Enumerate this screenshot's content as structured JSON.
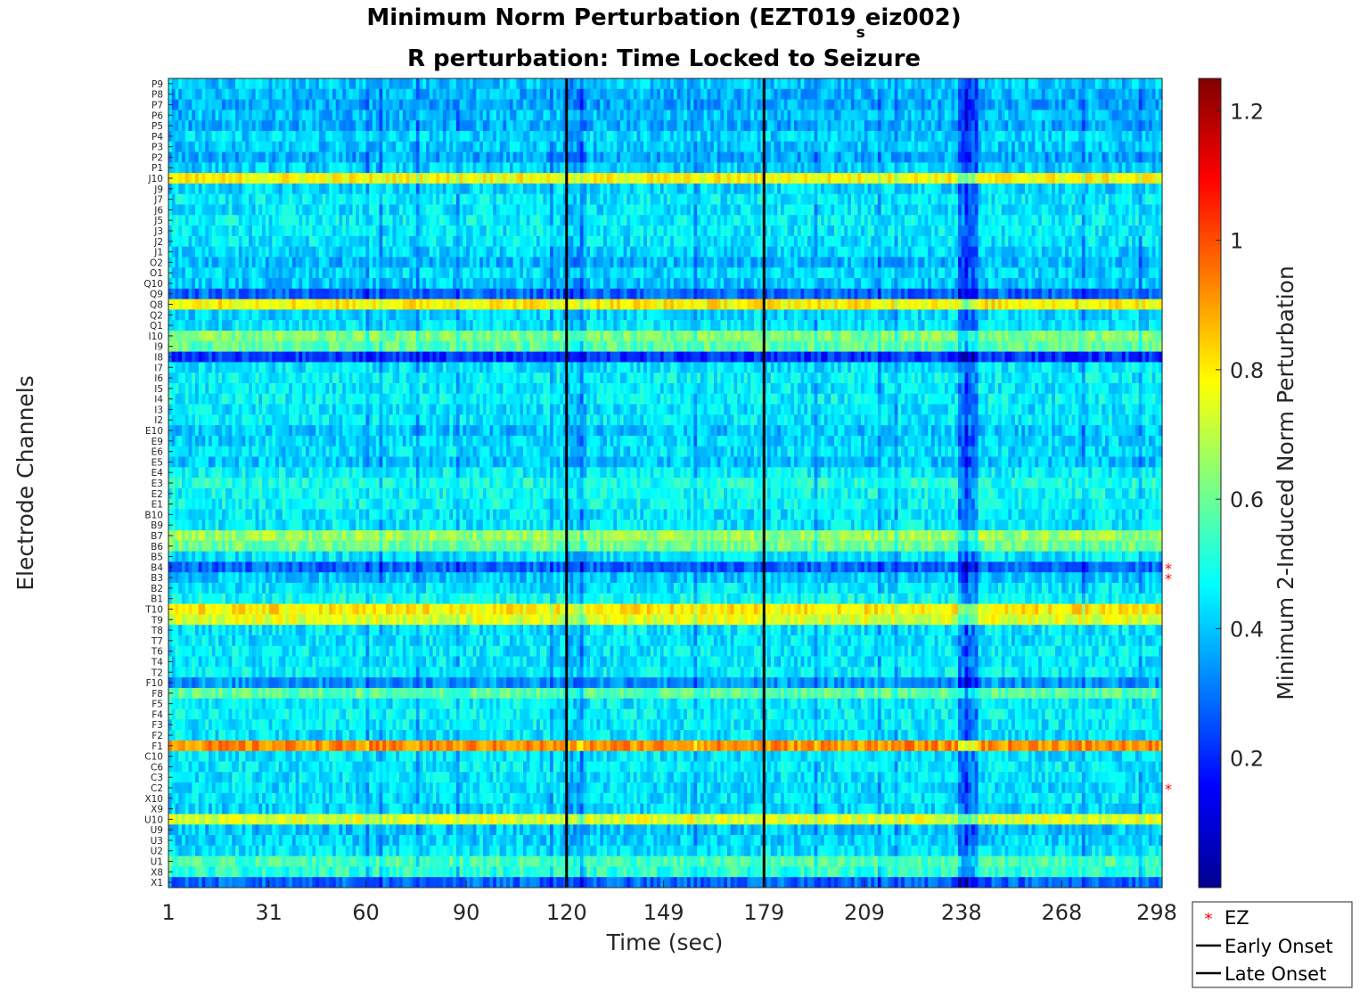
{
  "colors": {
    "ez_marker": "#ff0000",
    "onset_line": "#000000",
    "colormap": "jet"
  },
  "chart_data": {
    "type": "heatmap",
    "title_line1_main": "Minimum Norm Perturbation (EZT019",
    "title_line1_sub": "s",
    "title_line1_end": "eiz002)",
    "title_line2": "R perturbation:  Time Locked to Seizure",
    "xlabel": "Time (sec)",
    "ylabel": "Electrode Channels",
    "colorbar_label": "Minimum 2-Induced Norm Perturbation",
    "xlim": [
      1,
      298
    ],
    "x_ticks": [
      1,
      31,
      60,
      90,
      120,
      149,
      179,
      209,
      238,
      268,
      298
    ],
    "clim": [
      0.0,
      1.25
    ],
    "colorbar_ticks": [
      "0.2",
      "0.4",
      "0.6",
      "0.8",
      "1",
      "1.2"
    ],
    "colorbar_tick_values": [
      0.2,
      0.4,
      0.6,
      0.8,
      1.0,
      1.2
    ],
    "channels": [
      "P9",
      "P8",
      "P7",
      "P6",
      "P5",
      "P4",
      "P3",
      "P2",
      "P1",
      "J10",
      "J9",
      "J7",
      "J6",
      "J5",
      "J3",
      "J2",
      "J1",
      "O2",
      "O1",
      "Q10",
      "Q9",
      "Q8",
      "Q2",
      "Q1",
      "I10",
      "I9",
      "I8",
      "I7",
      "I6",
      "I5",
      "I4",
      "I3",
      "I2",
      "E10",
      "E9",
      "E6",
      "E5",
      "E4",
      "E3",
      "E2",
      "E1",
      "B10",
      "B9",
      "B7",
      "B6",
      "B5",
      "B4",
      "B3",
      "B2",
      "B1",
      "T10",
      "T9",
      "T8",
      "T7",
      "T6",
      "T4",
      "T2",
      "F10",
      "F8",
      "F5",
      "F4",
      "F3",
      "F2",
      "F1",
      "C10",
      "C6",
      "C3",
      "C2",
      "X10",
      "X9",
      "U10",
      "U9",
      "U3",
      "U2",
      "U1",
      "X8",
      "X1"
    ],
    "ez_channels": [
      "B4",
      "B3",
      "C2"
    ],
    "early_onset_sec": 120,
    "late_onset_sec": 179,
    "row_mean_values": {
      "P9": 0.4,
      "P8": 0.38,
      "P7": 0.36,
      "P6": 0.39,
      "P5": 0.37,
      "P4": 0.42,
      "P3": 0.4,
      "P2": 0.36,
      "P1": 0.41,
      "J10": 0.78,
      "J9": 0.42,
      "J7": 0.45,
      "J6": 0.44,
      "J5": 0.46,
      "J3": 0.45,
      "J2": 0.44,
      "J1": 0.42,
      "O2": 0.38,
      "O1": 0.42,
      "Q10": 0.4,
      "Q9": 0.28,
      "Q8": 0.8,
      "Q2": 0.42,
      "Q1": 0.44,
      "I10": 0.62,
      "I9": 0.58,
      "I8": 0.22,
      "I7": 0.44,
      "I6": 0.46,
      "I5": 0.45,
      "I4": 0.46,
      "I3": 0.44,
      "I2": 0.45,
      "E10": 0.4,
      "E9": 0.42,
      "E6": 0.43,
      "E5": 0.4,
      "E4": 0.46,
      "E3": 0.5,
      "E2": 0.48,
      "E1": 0.47,
      "B10": 0.44,
      "B9": 0.45,
      "B7": 0.66,
      "B6": 0.6,
      "B5": 0.44,
      "B4": 0.28,
      "B3": 0.4,
      "B2": 0.44,
      "B1": 0.48,
      "T10": 0.8,
      "T9": 0.74,
      "T8": 0.44,
      "T7": 0.44,
      "T6": 0.45,
      "T4": 0.44,
      "T2": 0.46,
      "F10": 0.34,
      "F8": 0.58,
      "F5": 0.45,
      "F4": 0.46,
      "F3": 0.45,
      "F2": 0.44,
      "F1": 0.92,
      "C10": 0.44,
      "C6": 0.45,
      "C3": 0.44,
      "C2": 0.43,
      "X10": 0.44,
      "X9": 0.42,
      "U10": 0.74,
      "U9": 0.4,
      "U3": 0.42,
      "U2": 0.44,
      "U1": 0.56,
      "X8": 0.52,
      "X1": 0.28
    },
    "legend": {
      "placement": "bottom-right",
      "entries": [
        {
          "label": "EZ",
          "marker": "*"
        },
        {
          "label": "Early Onset",
          "marker": "line"
        },
        {
          "label": "Late Onset",
          "marker": "line"
        }
      ]
    }
  }
}
